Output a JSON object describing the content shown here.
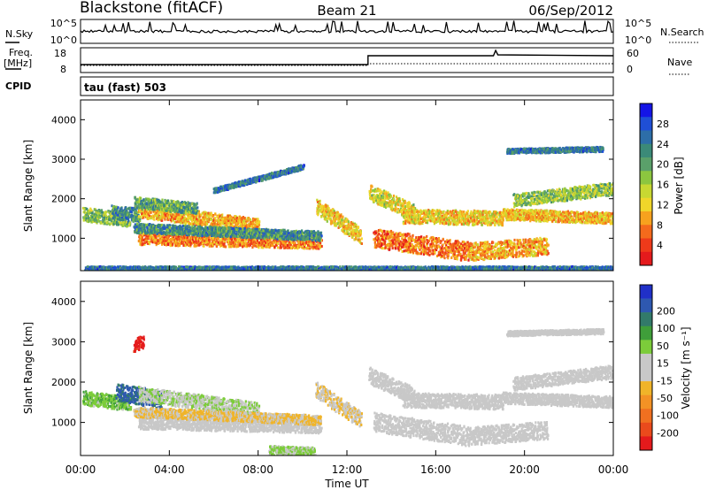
{
  "header": {
    "station": "Blackstone (fitACF)",
    "beam": "Beam 21",
    "date": "06/Sep/2012"
  },
  "top_panels": {
    "nsky_label": "N.Sky",
    "nsky_ticks": [
      "10^5",
      "10^0"
    ],
    "nsearch_label": "N.Search",
    "nsearch_ticks": [
      "10^5",
      "10^0"
    ],
    "freq_label_1": "Freq.",
    "freq_label_2": "[MHz]",
    "freq_ticks": [
      "18",
      "8"
    ],
    "nave_label": "Nave",
    "nave_ticks": [
      "60",
      "0"
    ],
    "cpid_label": "CPID",
    "cpid_value": "tau (fast) 503"
  },
  "chart_data": [
    {
      "type": "heatmap",
      "name": "power",
      "ylabel": "Slant Range [km]",
      "ylim": [
        180,
        4500
      ],
      "yticks": [
        "1000",
        "2000",
        "3000",
        "4000"
      ],
      "xlim": [
        0,
        24
      ],
      "xticks": [
        "00:00",
        "04:00",
        "08:00",
        "12:00",
        "16:00",
        "20:00",
        "00:00"
      ],
      "colorbar": {
        "label": "Power [dB]",
        "ticks": [
          "4",
          "8",
          "12",
          "16",
          "20",
          "24",
          "28"
        ],
        "colors": [
          "#1414e6",
          "#1f4fd6",
          "#2d6ea8",
          "#3b8a78",
          "#5aa06a",
          "#8cc63f",
          "#c8d832",
          "#f0d62a",
          "#f7a21e",
          "#f46a1c",
          "#ee3a1a",
          "#e41a1c"
        ]
      },
      "bands": [
        {
          "t": [
            0.1,
            2.2
          ],
          "r": [
            1600,
            1450
          ],
          "w": 170,
          "v": 14
        },
        {
          "t": [
            1.4,
            2.6
          ],
          "r": [
            1650,
            1580
          ],
          "w": 170,
          "v": 10
        },
        {
          "t": [
            2.6,
            8.0
          ],
          "r": [
            1700,
            1300
          ],
          "w": 180,
          "v": 22
        },
        {
          "t": [
            2.4,
            5.2
          ],
          "r": [
            1900,
            1750
          ],
          "w": 140,
          "v": 12
        },
        {
          "t": [
            2.6,
            10.8
          ],
          "r": [
            1000,
            900
          ],
          "w": 170,
          "v": 24
        },
        {
          "t": [
            2.4,
            10.8
          ],
          "r": [
            1250,
            1050
          ],
          "w": 120,
          "v": 10
        },
        {
          "t": [
            10.6,
            12.6
          ],
          "r": [
            1800,
            1050
          ],
          "w": 200,
          "v": 20
        },
        {
          "t": [
            13.0,
            15.0
          ],
          "r": [
            2150,
            1650
          ],
          "w": 200,
          "v": 18
        },
        {
          "t": [
            14.5,
            19.0
          ],
          "r": [
            1550,
            1500
          ],
          "w": 180,
          "v": 20
        },
        {
          "t": [
            19.0,
            24.0
          ],
          "r": [
            1600,
            1500
          ],
          "w": 140,
          "v": 21
        },
        {
          "t": [
            19.5,
            24.0
          ],
          "r": [
            1950,
            2250
          ],
          "w": 160,
          "v": 15
        },
        {
          "t": [
            13.2,
            17.5
          ],
          "r": [
            1000,
            650
          ],
          "w": 240,
          "v": 25
        },
        {
          "t": [
            17.5,
            21.0
          ],
          "r": [
            650,
            800
          ],
          "w": 220,
          "v": 22
        },
        {
          "t": [
            19.2,
            23.5
          ],
          "r": [
            3200,
            3250
          ],
          "w": 60,
          "v": 8
        },
        {
          "t": [
            6.0,
            10.0
          ],
          "r": [
            2200,
            2800
          ],
          "w": 60,
          "v": 8
        },
        {
          "t": [
            0.2,
            24.0
          ],
          "r": [
            220,
            220
          ],
          "w": 60,
          "v": 8
        }
      ]
    },
    {
      "type": "heatmap",
      "name": "velocity",
      "ylabel": "Slant Range [km]",
      "ylim": [
        180,
        4500
      ],
      "yticks": [
        "1000",
        "2000",
        "3000",
        "4000"
      ],
      "xlim": [
        0,
        24
      ],
      "xticks": [
        "00:00",
        "04:00",
        "08:00",
        "12:00",
        "16:00",
        "20:00",
        "00:00"
      ],
      "xlabel": "Time UT",
      "colorbar": {
        "label": "Velocity [m s⁻¹]",
        "ticks": [
          "200",
          "100",
          "50",
          "15",
          "-15",
          "-50",
          "-100",
          "-200"
        ],
        "colors": [
          "#2030c8",
          "#2e58b0",
          "#327a6a",
          "#3f9e3a",
          "#7ccc3a",
          "#c8c8c8",
          "#c8c8c8",
          "#f0b429",
          "#f39225",
          "#f07020",
          "#ea4a1c",
          "#e41a1c"
        ]
      },
      "bands": [
        {
          "t": [
            0.1,
            2.2
          ],
          "r": [
            1600,
            1450
          ],
          "w": 170,
          "v": 60
        },
        {
          "t": [
            1.6,
            3.6
          ],
          "r": [
            1750,
            1550
          ],
          "w": 220,
          "v": 150
        },
        {
          "t": [
            2.6,
            8.0
          ],
          "r": [
            1700,
            1300
          ],
          "w": 180,
          "v": 30
        },
        {
          "t": [
            2.6,
            10.8
          ],
          "r": [
            1000,
            900
          ],
          "w": 170,
          "v": 0
        },
        {
          "t": [
            2.4,
            10.8
          ],
          "r": [
            1250,
            1050
          ],
          "w": 120,
          "v": -40
        },
        {
          "t": [
            10.6,
            12.6
          ],
          "r": [
            1800,
            1050
          ],
          "w": 200,
          "v": -30
        },
        {
          "t": [
            13.0,
            15.0
          ],
          "r": [
            2150,
            1650
          ],
          "w": 200,
          "v": 0
        },
        {
          "t": [
            14.5,
            19.0
          ],
          "r": [
            1550,
            1500
          ],
          "w": 180,
          "v": 0
        },
        {
          "t": [
            19.0,
            24.0
          ],
          "r": [
            1600,
            1500
          ],
          "w": 140,
          "v": 0
        },
        {
          "t": [
            19.5,
            24.0
          ],
          "r": [
            1950,
            2250
          ],
          "w": 160,
          "v": 0
        },
        {
          "t": [
            13.2,
            17.5
          ],
          "r": [
            1000,
            650
          ],
          "w": 240,
          "v": 0
        },
        {
          "t": [
            17.5,
            21.0
          ],
          "r": [
            650,
            800
          ],
          "w": 220,
          "v": 0
        },
        {
          "t": [
            19.2,
            23.5
          ],
          "r": [
            3200,
            3250
          ],
          "w": 60,
          "v": 0
        },
        {
          "t": [
            2.4,
            2.8
          ],
          "r": [
            2900,
            3000
          ],
          "w": 160,
          "v": -200
        },
        {
          "t": [
            8.5,
            10.5
          ],
          "r": [
            300,
            250
          ],
          "w": 120,
          "v": 40
        }
      ]
    }
  ]
}
